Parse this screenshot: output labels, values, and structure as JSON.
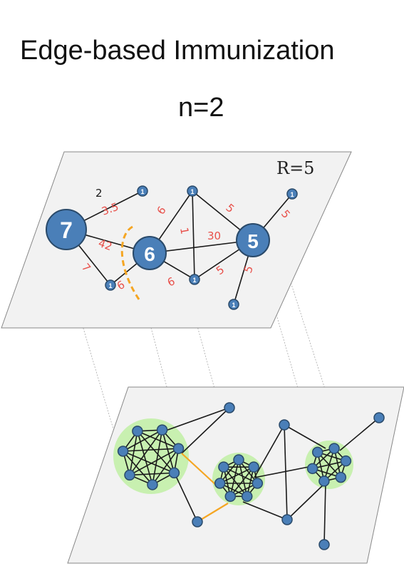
{
  "title": "Edge-based Immunization",
  "subtitle": "n=2",
  "top_panel": {
    "r_label": "R=5",
    "node_labels": {
      "a": "7",
      "b": "6",
      "c": "5",
      "leaf": "1"
    },
    "edge_labels": {
      "e1": "2",
      "e2": "3.5",
      "e3": "42",
      "e4": "7",
      "e5": "6",
      "e6": "6",
      "e7": "6",
      "e8": "1",
      "e9": "30",
      "e10": "5",
      "e11": "5",
      "e12": "5",
      "e13": "5"
    }
  },
  "colors": {
    "node_fill": "#4a7fb8",
    "node_stroke": "#2a4a6a",
    "edge": "#1a1a1a",
    "cut": "#f5a623",
    "red_label": "#e8504a",
    "cluster": "#c8f0b0",
    "plane": "#f2f2f2"
  }
}
